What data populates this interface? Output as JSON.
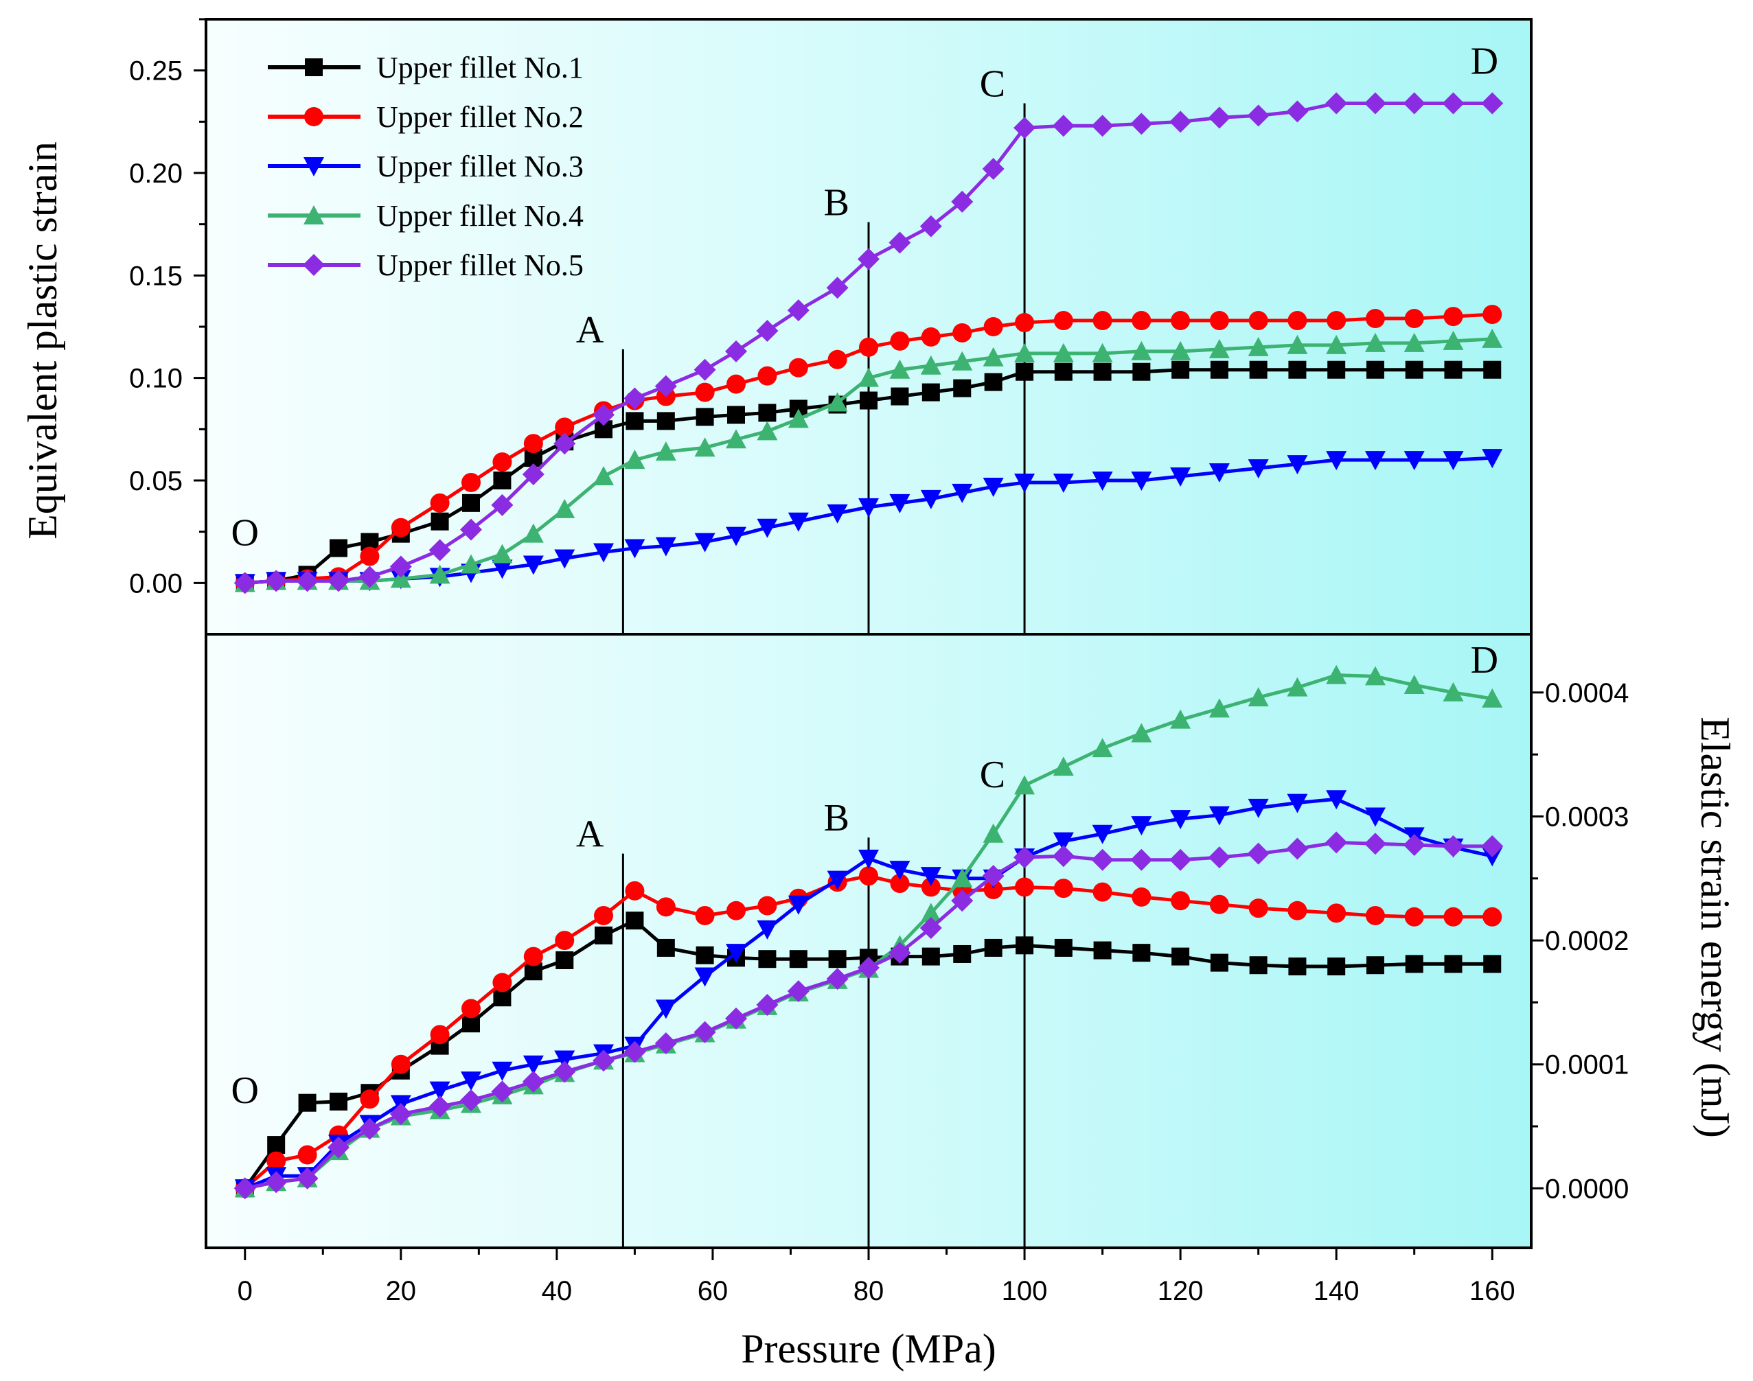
{
  "chart_data": [
    {
      "type": "line",
      "panel": "top",
      "xlabel": "Pressure (MPa)",
      "ylabel": "Equivalent plastic strain",
      "xlim": [
        -5,
        165
      ],
      "ylim": [
        -0.025,
        0.275
      ],
      "xticks": [
        "0",
        "20",
        "40",
        "60",
        "80",
        "100",
        "120",
        "140",
        "160"
      ],
      "yticks": [
        "0.00",
        "0.05",
        "0.10",
        "0.15",
        "0.20",
        "0.25"
      ],
      "legend_position": "top-left",
      "phase_lines": [
        {
          "label": "A",
          "x": 48.5,
          "y_top": 0.114
        },
        {
          "label": "B",
          "x": 80,
          "y_top": 0.176
        },
        {
          "label": "C",
          "x": 100,
          "y_top": 0.234
        }
      ],
      "corner_labels": [
        {
          "label": "O",
          "x": 0,
          "y": 0.025
        },
        {
          "label": "D",
          "x": 159,
          "y": 0.255
        }
      ],
      "series": [
        {
          "name": "Upper fillet No.1",
          "color": "#000000",
          "marker": "square",
          "x": [
            0,
            4,
            8,
            12,
            16,
            20,
            25,
            29,
            33,
            37,
            41,
            46,
            50,
            54,
            59,
            63,
            67,
            71,
            76,
            80,
            84,
            88,
            92,
            96,
            100,
            105,
            110,
            115,
            120,
            125,
            130,
            135,
            140,
            145,
            150,
            155,
            160
          ],
          "y": [
            0,
            0.001,
            0.004,
            0.017,
            0.02,
            0.024,
            0.03,
            0.039,
            0.05,
            0.061,
            0.069,
            0.075,
            0.079,
            0.079,
            0.081,
            0.082,
            0.083,
            0.085,
            0.087,
            0.089,
            0.091,
            0.093,
            0.095,
            0.098,
            0.103,
            0.103,
            0.103,
            0.103,
            0.104,
            0.104,
            0.104,
            0.104,
            0.104,
            0.104,
            0.104,
            0.104,
            0.104
          ]
        },
        {
          "name": "Upper fillet No.2",
          "color": "#ff0000",
          "marker": "circle",
          "x": [
            0,
            4,
            8,
            12,
            16,
            20,
            25,
            29,
            33,
            37,
            41,
            46,
            50,
            54,
            59,
            63,
            67,
            71,
            76,
            80,
            84,
            88,
            92,
            96,
            100,
            105,
            110,
            115,
            120,
            125,
            130,
            135,
            140,
            145,
            150,
            155,
            160
          ],
          "y": [
            0,
            0.001,
            0.002,
            0.003,
            0.013,
            0.027,
            0.039,
            0.049,
            0.059,
            0.068,
            0.076,
            0.084,
            0.089,
            0.091,
            0.093,
            0.097,
            0.101,
            0.105,
            0.109,
            0.115,
            0.118,
            0.12,
            0.122,
            0.125,
            0.127,
            0.128,
            0.128,
            0.128,
            0.128,
            0.128,
            0.128,
            0.128,
            0.128,
            0.129,
            0.129,
            0.13,
            0.131
          ]
        },
        {
          "name": "Upper fillet No.3",
          "color": "#0000ff",
          "marker": "triangle-down",
          "x": [
            0,
            4,
            8,
            12,
            16,
            20,
            25,
            29,
            33,
            37,
            41,
            46,
            50,
            54,
            59,
            63,
            67,
            71,
            76,
            80,
            84,
            88,
            92,
            96,
            100,
            105,
            110,
            115,
            120,
            125,
            130,
            135,
            140,
            145,
            150,
            155,
            160
          ],
          "y": [
            0,
            0.001,
            0.001,
            0.001,
            0.001,
            0.002,
            0.003,
            0.005,
            0.007,
            0.009,
            0.012,
            0.015,
            0.017,
            0.018,
            0.02,
            0.023,
            0.027,
            0.03,
            0.034,
            0.037,
            0.039,
            0.041,
            0.044,
            0.047,
            0.049,
            0.049,
            0.05,
            0.05,
            0.052,
            0.054,
            0.056,
            0.058,
            0.06,
            0.06,
            0.06,
            0.06,
            0.061
          ]
        },
        {
          "name": "Upper fillet No.4",
          "color": "#3cb371",
          "marker": "triangle-up",
          "x": [
            0,
            4,
            8,
            12,
            16,
            20,
            25,
            29,
            33,
            37,
            41,
            46,
            50,
            54,
            59,
            63,
            67,
            71,
            76,
            80,
            84,
            88,
            92,
            96,
            100,
            105,
            110,
            115,
            120,
            125,
            130,
            135,
            140,
            145,
            150,
            155,
            160
          ],
          "y": [
            0,
            0.001,
            0.001,
            0.001,
            0.001,
            0.002,
            0.004,
            0.009,
            0.014,
            0.024,
            0.036,
            0.052,
            0.06,
            0.064,
            0.066,
            0.07,
            0.074,
            0.08,
            0.088,
            0.1,
            0.104,
            0.106,
            0.108,
            0.11,
            0.112,
            0.112,
            0.112,
            0.113,
            0.113,
            0.114,
            0.115,
            0.116,
            0.116,
            0.117,
            0.117,
            0.118,
            0.119
          ]
        },
        {
          "name": "Upper fillet No.5",
          "color": "#8b2be2",
          "marker": "diamond",
          "x": [
            0,
            4,
            8,
            12,
            16,
            20,
            25,
            29,
            33,
            37,
            41,
            46,
            50,
            54,
            59,
            63,
            67,
            71,
            76,
            80,
            84,
            88,
            92,
            96,
            100,
            105,
            110,
            115,
            120,
            125,
            130,
            135,
            140,
            145,
            150,
            155,
            160
          ],
          "y": [
            0,
            0.001,
            0.001,
            0.001,
            0.003,
            0.008,
            0.016,
            0.026,
            0.038,
            0.053,
            0.068,
            0.082,
            0.09,
            0.096,
            0.104,
            0.113,
            0.123,
            0.133,
            0.144,
            0.158,
            0.166,
            0.174,
            0.186,
            0.202,
            0.222,
            0.223,
            0.223,
            0.224,
            0.225,
            0.227,
            0.228,
            0.23,
            0.234,
            0.234,
            0.234,
            0.234,
            0.234
          ]
        }
      ]
    },
    {
      "type": "line",
      "panel": "bottom",
      "xlabel": "Pressure (MPa)",
      "ylabel": "Elastic strain energy (mJ)",
      "xlim": [
        -5,
        165
      ],
      "ylim": [
        -4.8e-05,
        0.000447
      ],
      "xticks": [
        "0",
        "20",
        "40",
        "60",
        "80",
        "100",
        "120",
        "140",
        "160"
      ],
      "yticks": [
        "0.0000",
        "0.0001",
        "0.0002",
        "0.0003",
        "0.0004"
      ],
      "phase_lines": [
        {
          "label": "A",
          "x": 48.5,
          "y_top": 0.00027
        },
        {
          "label": "B",
          "x": 80,
          "y_top": 0.000283
        },
        {
          "label": "C",
          "x": 100,
          "y_top": 0.000318
        }
      ],
      "corner_labels": [
        {
          "label": "O",
          "x": 0,
          "y": 8e-05
        },
        {
          "label": "D",
          "x": 159,
          "y": 0.000427
        }
      ],
      "series": [
        {
          "name": "Upper fillet No.1",
          "color": "#000000",
          "marker": "square",
          "x": [
            0,
            4,
            8,
            12,
            16,
            20,
            25,
            29,
            33,
            37,
            41,
            46,
            50,
            54,
            59,
            63,
            67,
            71,
            76,
            80,
            84,
            88,
            92,
            96,
            100,
            105,
            110,
            115,
            120,
            125,
            130,
            135,
            140,
            145,
            150,
            155,
            160
          ],
          "y": [
            0,
            3.5e-05,
            6.9e-05,
            7e-05,
            7.7e-05,
            9.5e-05,
            0.000115,
            0.000133,
            0.000154,
            0.000175,
            0.000184,
            0.000204,
            0.000216,
            0.000194,
            0.000188,
            0.000186,
            0.000185,
            0.000185,
            0.000185,
            0.000186,
            0.000187,
            0.000187,
            0.000189,
            0.000194,
            0.000196,
            0.000194,
            0.000192,
            0.00019,
            0.000187,
            0.000182,
            0.00018,
            0.000179,
            0.000179,
            0.00018,
            0.000181,
            0.000181,
            0.000181
          ]
        },
        {
          "name": "Upper fillet No.2",
          "color": "#ff0000",
          "marker": "circle",
          "x": [
            0,
            4,
            8,
            12,
            16,
            20,
            25,
            29,
            33,
            37,
            41,
            46,
            50,
            54,
            59,
            63,
            67,
            71,
            76,
            80,
            84,
            88,
            92,
            96,
            100,
            105,
            110,
            115,
            120,
            125,
            130,
            135,
            140,
            145,
            150,
            155,
            160
          ],
          "y": [
            0,
            2.2e-05,
            2.7e-05,
            4.3e-05,
            7.2e-05,
            0.0001,
            0.000124,
            0.000145,
            0.000166,
            0.000187,
            0.0002,
            0.00022,
            0.00024,
            0.000227,
            0.00022,
            0.000224,
            0.000228,
            0.000234,
            0.000247,
            0.000252,
            0.000246,
            0.000243,
            0.00024,
            0.000241,
            0.000243,
            0.000242,
            0.000239,
            0.000235,
            0.000232,
            0.000229,
            0.000226,
            0.000224,
            0.000222,
            0.00022,
            0.000219,
            0.000219,
            0.000219
          ]
        },
        {
          "name": "Upper fillet No.3",
          "color": "#0000ff",
          "marker": "triangle-down",
          "x": [
            0,
            4,
            8,
            12,
            16,
            20,
            25,
            29,
            33,
            37,
            41,
            46,
            50,
            54,
            59,
            63,
            67,
            71,
            76,
            80,
            84,
            88,
            92,
            96,
            100,
            105,
            110,
            115,
            120,
            125,
            130,
            135,
            140,
            145,
            150,
            155,
            160
          ],
          "y": [
            0,
            1e-05,
            1e-05,
            3.6e-05,
            5.2e-05,
            6.8e-05,
            7.9e-05,
            8.7e-05,
            9.5e-05,
            0.0001,
            0.000104,
            0.000109,
            0.000115,
            0.000145,
            0.000171,
            0.00019,
            0.000209,
            0.000229,
            0.000249,
            0.000266,
            0.000257,
            0.000252,
            0.00025,
            0.00025,
            0.000267,
            0.00028,
            0.000286,
            0.000293,
            0.000298,
            0.000301,
            0.000307,
            0.000311,
            0.000314,
            0.0003,
            0.000284,
            0.000275,
            0.000268
          ]
        },
        {
          "name": "Upper fillet No.4",
          "color": "#3cb371",
          "marker": "triangle-up",
          "x": [
            0,
            4,
            8,
            12,
            16,
            20,
            25,
            29,
            33,
            37,
            41,
            46,
            50,
            54,
            59,
            63,
            67,
            71,
            76,
            80,
            84,
            88,
            92,
            96,
            100,
            105,
            110,
            115,
            120,
            125,
            130,
            135,
            140,
            145,
            150,
            155,
            160
          ],
          "y": [
            0,
            5e-06,
            8e-06,
            3e-05,
            4.8e-05,
            5.8e-05,
            6.3e-05,
            6.8e-05,
            7.5e-05,
            8.3e-05,
            9.3e-05,
            0.000103,
            0.000109,
            0.000116,
            0.000125,
            0.000136,
            0.000147,
            0.000158,
            0.000168,
            0.000177,
            0.000196,
            0.000222,
            0.00025,
            0.000286,
            0.000325,
            0.00034,
            0.000355,
            0.000367,
            0.000378,
            0.000387,
            0.000396,
            0.000404,
            0.000414,
            0.000413,
            0.000406,
            0.0004,
            0.000395
          ]
        },
        {
          "name": "Upper fillet No.5",
          "color": "#8b2be2",
          "marker": "diamond",
          "x": [
            0,
            4,
            8,
            12,
            16,
            20,
            25,
            29,
            33,
            37,
            41,
            46,
            50,
            54,
            59,
            63,
            67,
            71,
            76,
            80,
            84,
            88,
            92,
            96,
            100,
            105,
            110,
            115,
            120,
            125,
            130,
            135,
            140,
            145,
            150,
            155,
            160
          ],
          "y": [
            0,
            5e-06,
            8e-06,
            3.3e-05,
            4.8e-05,
            6e-05,
            6.6e-05,
            7.1e-05,
            7.8e-05,
            8.6e-05,
            9.4e-05,
            0.000103,
            0.00011,
            0.000117,
            0.000126,
            0.000137,
            0.000148,
            0.000159,
            0.000169,
            0.000178,
            0.00019,
            0.00021,
            0.000232,
            0.000252,
            0.000267,
            0.000268,
            0.000265,
            0.000265,
            0.000265,
            0.000267,
            0.00027,
            0.000274,
            0.000279,
            0.000278,
            0.000277,
            0.000276,
            0.000276
          ]
        }
      ]
    }
  ]
}
